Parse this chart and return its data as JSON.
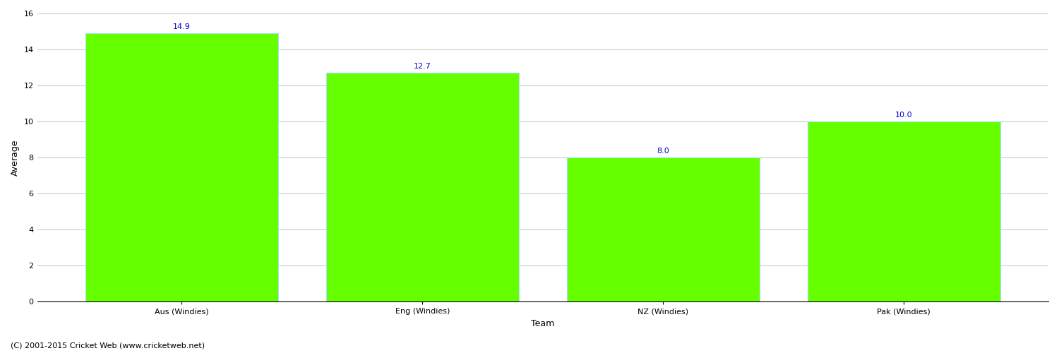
{
  "categories": [
    "Aus (Windies)",
    "Eng (Windies)",
    "NZ (Windies)",
    "Pak (Windies)"
  ],
  "values": [
    14.9,
    12.7,
    8.0,
    10.0
  ],
  "bar_color": "#66ff00",
  "bar_edge_color": "#aaddff",
  "label_color": "#0000cc",
  "xlabel": "Team",
  "ylabel": "Average",
  "ylim": [
    0,
    16
  ],
  "yticks": [
    0,
    2,
    4,
    6,
    8,
    10,
    12,
    14,
    16
  ],
  "grid_color": "#cccccc",
  "background_color": "#ffffff",
  "footer_text": "(C) 2001-2015 Cricket Web (www.cricketweb.net)",
  "label_fontsize": 8,
  "axis_label_fontsize": 9,
  "tick_fontsize": 8,
  "footer_fontsize": 8
}
